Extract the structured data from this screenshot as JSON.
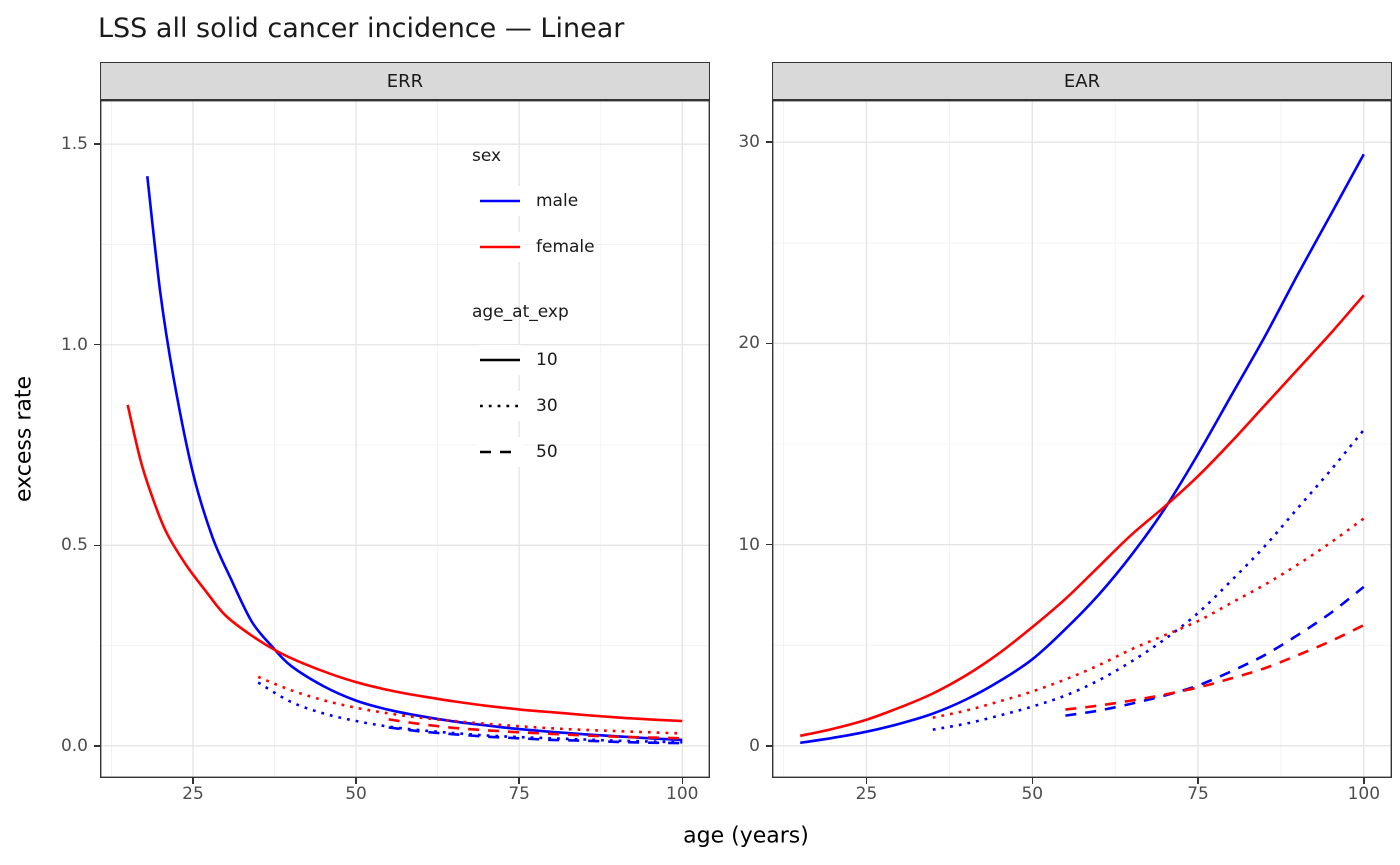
{
  "chart_data": {
    "type": "line",
    "title": "LSS all solid cancer incidence — Linear",
    "xlabel": "age (years)",
    "ylabel": "excess rate",
    "grid": true,
    "legend_position": "inside upper-center of ERR panel",
    "colors": {
      "male": "#0000FF",
      "female": "#FF0000"
    },
    "x_ticks": [
      {
        "value": 25,
        "label": "25"
      },
      {
        "value": 50,
        "label": "50"
      },
      {
        "value": 75,
        "label": "75"
      },
      {
        "value": 100,
        "label": "100"
      }
    ],
    "x_range": [
      10.75,
      104.25
    ],
    "facets": [
      {
        "name": "ERR",
        "y_ticks": [
          {
            "value": 1.5,
            "label": "1.5"
          },
          {
            "value": 1.0,
            "label": "1.0"
          },
          {
            "value": 0.5,
            "label": "0.5"
          },
          {
            "value": 0.0,
            "label": "0.0"
          }
        ],
        "y_range": [
          -0.08,
          1.61
        ],
        "series": [
          {
            "sex": "male",
            "age_at_exp": "10",
            "x": [
              18,
              20,
              22,
              25,
              28,
              31,
              34,
              37,
              40,
              45,
              50,
              55,
              60,
              65,
              70,
              75,
              80,
              85,
              90,
              95,
              100
            ],
            "y": [
              1.42,
              1.13,
              0.92,
              0.68,
              0.52,
              0.41,
              0.31,
              0.25,
              0.2,
              0.149,
              0.113,
              0.09,
              0.074,
              0.061,
              0.051,
              0.042,
              0.035,
              0.029,
              0.024,
              0.019,
              0.015
            ]
          },
          {
            "sex": "female",
            "age_at_exp": "10",
            "x": [
              15,
              17,
              19,
              21,
              24,
              27,
              30,
              34,
              38,
              42,
              46,
              50,
              55,
              60,
              65,
              70,
              75,
              80,
              85,
              90,
              95,
              100
            ],
            "y": [
              0.85,
              0.71,
              0.61,
              0.53,
              0.45,
              0.385,
              0.325,
              0.275,
              0.235,
              0.205,
              0.18,
              0.159,
              0.139,
              0.124,
              0.111,
              0.1,
              0.091,
              0.084,
              0.077,
              0.071,
              0.066,
              0.062
            ]
          },
          {
            "sex": "male",
            "age_at_exp": "30",
            "x": [
              35,
              40,
              45,
              50,
              55,
              60,
              65,
              70,
              75,
              80,
              85,
              90,
              95,
              100
            ],
            "y": [
              0.158,
              0.11,
              0.081,
              0.062,
              0.048,
              0.039,
              0.032,
              0.026,
              0.022,
              0.019,
              0.016,
              0.013,
              0.011,
              0.009
            ]
          },
          {
            "sex": "female",
            "age_at_exp": "30",
            "x": [
              35,
              40,
              45,
              50,
              55,
              60,
              65,
              70,
              75,
              80,
              85,
              90,
              95,
              100
            ],
            "y": [
              0.172,
              0.139,
              0.114,
              0.095,
              0.081,
              0.07,
              0.062,
              0.055,
              0.049,
              0.044,
              0.04,
              0.037,
              0.034,
              0.031
            ]
          },
          {
            "sex": "male",
            "age_at_exp": "50",
            "x": [
              55,
              60,
              65,
              70,
              75,
              80,
              85,
              90,
              95,
              100
            ],
            "y": [
              0.046,
              0.036,
              0.029,
              0.023,
              0.019,
              0.015,
              0.013,
              0.01,
              0.008,
              0.007
            ]
          },
          {
            "sex": "female",
            "age_at_exp": "50",
            "x": [
              55,
              60,
              65,
              70,
              75,
              80,
              85,
              90,
              95,
              100
            ],
            "y": [
              0.066,
              0.054,
              0.045,
              0.039,
              0.034,
              0.03,
              0.026,
              0.023,
              0.021,
              0.019
            ]
          }
        ]
      },
      {
        "name": "EAR",
        "y_ticks": [
          {
            "value": 30,
            "label": "30"
          },
          {
            "value": 20,
            "label": "20"
          },
          {
            "value": 10,
            "label": "10"
          },
          {
            "value": 0,
            "label": "0"
          }
        ],
        "y_range": [
          -1.6,
          32.1
        ],
        "series": [
          {
            "sex": "male",
            "age_at_exp": "10",
            "x": [
              15,
              20,
              25,
              30,
              35,
              40,
              45,
              50,
              55,
              60,
              65,
              70,
              75,
              80,
              85,
              90,
              95,
              100
            ],
            "y": [
              0.15,
              0.4,
              0.7,
              1.1,
              1.6,
              2.3,
              3.2,
              4.3,
              5.8,
              7.5,
              9.5,
              11.8,
              14.5,
              17.4,
              20.3,
              23.4,
              26.4,
              29.4
            ]
          },
          {
            "sex": "female",
            "age_at_exp": "10",
            "x": [
              15,
              20,
              25,
              30,
              35,
              40,
              45,
              50,
              55,
              60,
              65,
              70,
              75,
              80,
              85,
              90,
              95,
              100
            ],
            "y": [
              0.5,
              0.85,
              1.3,
              1.9,
              2.6,
              3.5,
              4.6,
              5.9,
              7.3,
              8.9,
              10.5,
              11.9,
              13.4,
              15.1,
              16.9,
              18.7,
              20.5,
              22.4
            ]
          },
          {
            "sex": "male",
            "age_at_exp": "30",
            "x": [
              35,
              40,
              45,
              50,
              55,
              60,
              65,
              70,
              75,
              80,
              85,
              90,
              95,
              100
            ],
            "y": [
              0.8,
              1.1,
              1.5,
              1.95,
              2.5,
              3.25,
              4.2,
              5.3,
              6.6,
              8.2,
              9.9,
              11.8,
              13.7,
              15.7
            ]
          },
          {
            "sex": "female",
            "age_at_exp": "30",
            "x": [
              35,
              40,
              45,
              50,
              55,
              60,
              65,
              70,
              75,
              80,
              85,
              90,
              95,
              100
            ],
            "y": [
              1.4,
              1.75,
              2.2,
              2.7,
              3.3,
              4.0,
              4.8,
              5.5,
              6.2,
              7.1,
              8.0,
              9.0,
              10.1,
              11.3
            ]
          },
          {
            "sex": "male",
            "age_at_exp": "50",
            "x": [
              55,
              60,
              65,
              70,
              75,
              80,
              85,
              90,
              95,
              100
            ],
            "y": [
              1.5,
              1.75,
              2.1,
              2.5,
              3.0,
              3.7,
              4.5,
              5.5,
              6.6,
              7.9
            ]
          },
          {
            "sex": "female",
            "age_at_exp": "50",
            "x": [
              55,
              60,
              65,
              70,
              75,
              80,
              85,
              90,
              95,
              100
            ],
            "y": [
              1.8,
              2.0,
              2.25,
              2.55,
              2.9,
              3.35,
              3.85,
              4.5,
              5.2,
              6.0
            ]
          }
        ]
      }
    ],
    "legends": {
      "sex": {
        "title": "sex",
        "entries": [
          {
            "label": "male",
            "color": "#0000FF",
            "linetype": "solid"
          },
          {
            "label": "female",
            "color": "#FF0000",
            "linetype": "solid"
          }
        ]
      },
      "age_at_exp": {
        "title": "age_at_exp",
        "entries": [
          {
            "label": "10",
            "color": "#000000",
            "linetype": "solid"
          },
          {
            "label": "30",
            "color": "#000000",
            "linetype": "dotted"
          },
          {
            "label": "50",
            "color": "#000000",
            "linetype": "dashed"
          }
        ]
      }
    }
  }
}
